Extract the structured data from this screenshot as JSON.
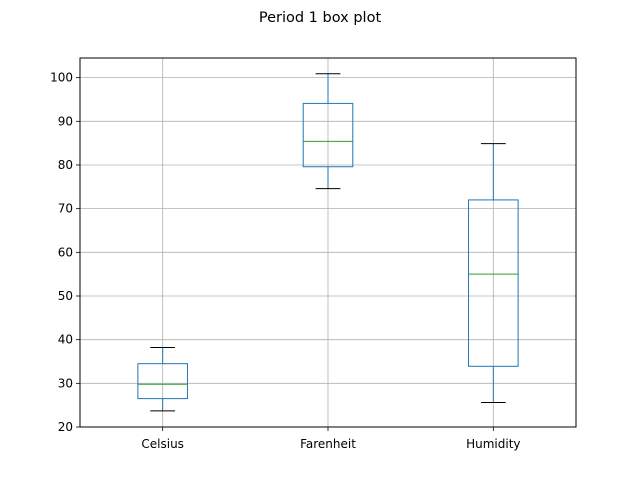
{
  "chart_data": {
    "type": "box",
    "title": "Period 1 box plot",
    "xlabel": "",
    "ylabel": "",
    "categories": [
      "Celsius",
      "Farenheit",
      "Humidity"
    ],
    "boxes": [
      {
        "name": "Celsius",
        "whisker_low": 23.7,
        "q1": 26.5,
        "median": 29.8,
        "q3": 34.5,
        "whisker_high": 38.2
      },
      {
        "name": "Farenheit",
        "whisker_low": 74.6,
        "q1": 79.6,
        "median": 85.4,
        "q3": 94.1,
        "whisker_high": 100.9
      },
      {
        "name": "Humidity",
        "whisker_low": 25.6,
        "q1": 33.9,
        "median": 55.0,
        "q3": 72.0,
        "whisker_high": 84.9
      }
    ],
    "ylim": [
      20,
      104.5
    ],
    "yticks": [
      20,
      30,
      40,
      50,
      60,
      70,
      80,
      90,
      100
    ],
    "grid": true,
    "colors": {
      "box": "#1f77b4",
      "median": "#2ca02c",
      "whisker_cap": "#000000",
      "grid": "#b0b0b0"
    }
  }
}
